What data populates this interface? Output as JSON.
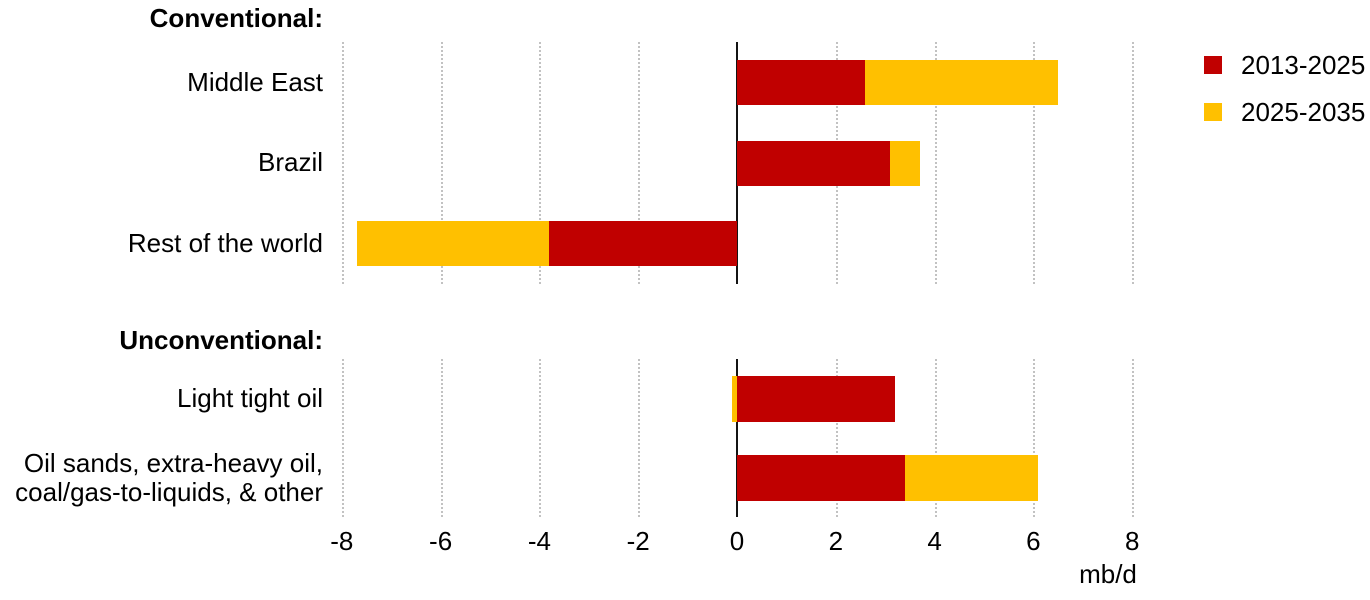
{
  "legend": {
    "items": [
      {
        "label": "2013-2025",
        "color": "#C00000"
      },
      {
        "label": "2025-2035",
        "color": "#FFC000"
      }
    ]
  },
  "chart_data": {
    "type": "bar",
    "orientation": "horizontal",
    "stacked": true,
    "title": "",
    "unit": "mb/d",
    "xlim": [
      -8.25,
      8.6
    ],
    "xticks": [
      -8,
      -6,
      -4,
      -2,
      0,
      2,
      4,
      6,
      8
    ],
    "gridlines": [
      -8,
      -6,
      -4,
      -2,
      2,
      4,
      6,
      8
    ],
    "grid": "dotted-vertical",
    "legend_position": "top-right",
    "series_names": [
      "2013-2025",
      "2025-2035"
    ],
    "groups": [
      {
        "title": "Conventional:",
        "categories": [
          "Middle East",
          "Brazil",
          "Rest of the world"
        ],
        "series": [
          {
            "name": "2013-2025",
            "values": [
              2.6,
              3.1,
              -3.8
            ]
          },
          {
            "name": "2025-2035",
            "values": [
              3.9,
              0.6,
              -3.9
            ]
          }
        ]
      },
      {
        "title": "Unconventional:",
        "categories": [
          "Light tight oil",
          "Oil sands, extra-heavy oil,\ncoal/gas-to-liquids, & other"
        ],
        "series": [
          {
            "name": "2013-2025",
            "values": [
              3.2,
              3.4
            ]
          },
          {
            "name": "2025-2035",
            "values": [
              -0.1,
              2.7
            ]
          }
        ]
      }
    ]
  }
}
